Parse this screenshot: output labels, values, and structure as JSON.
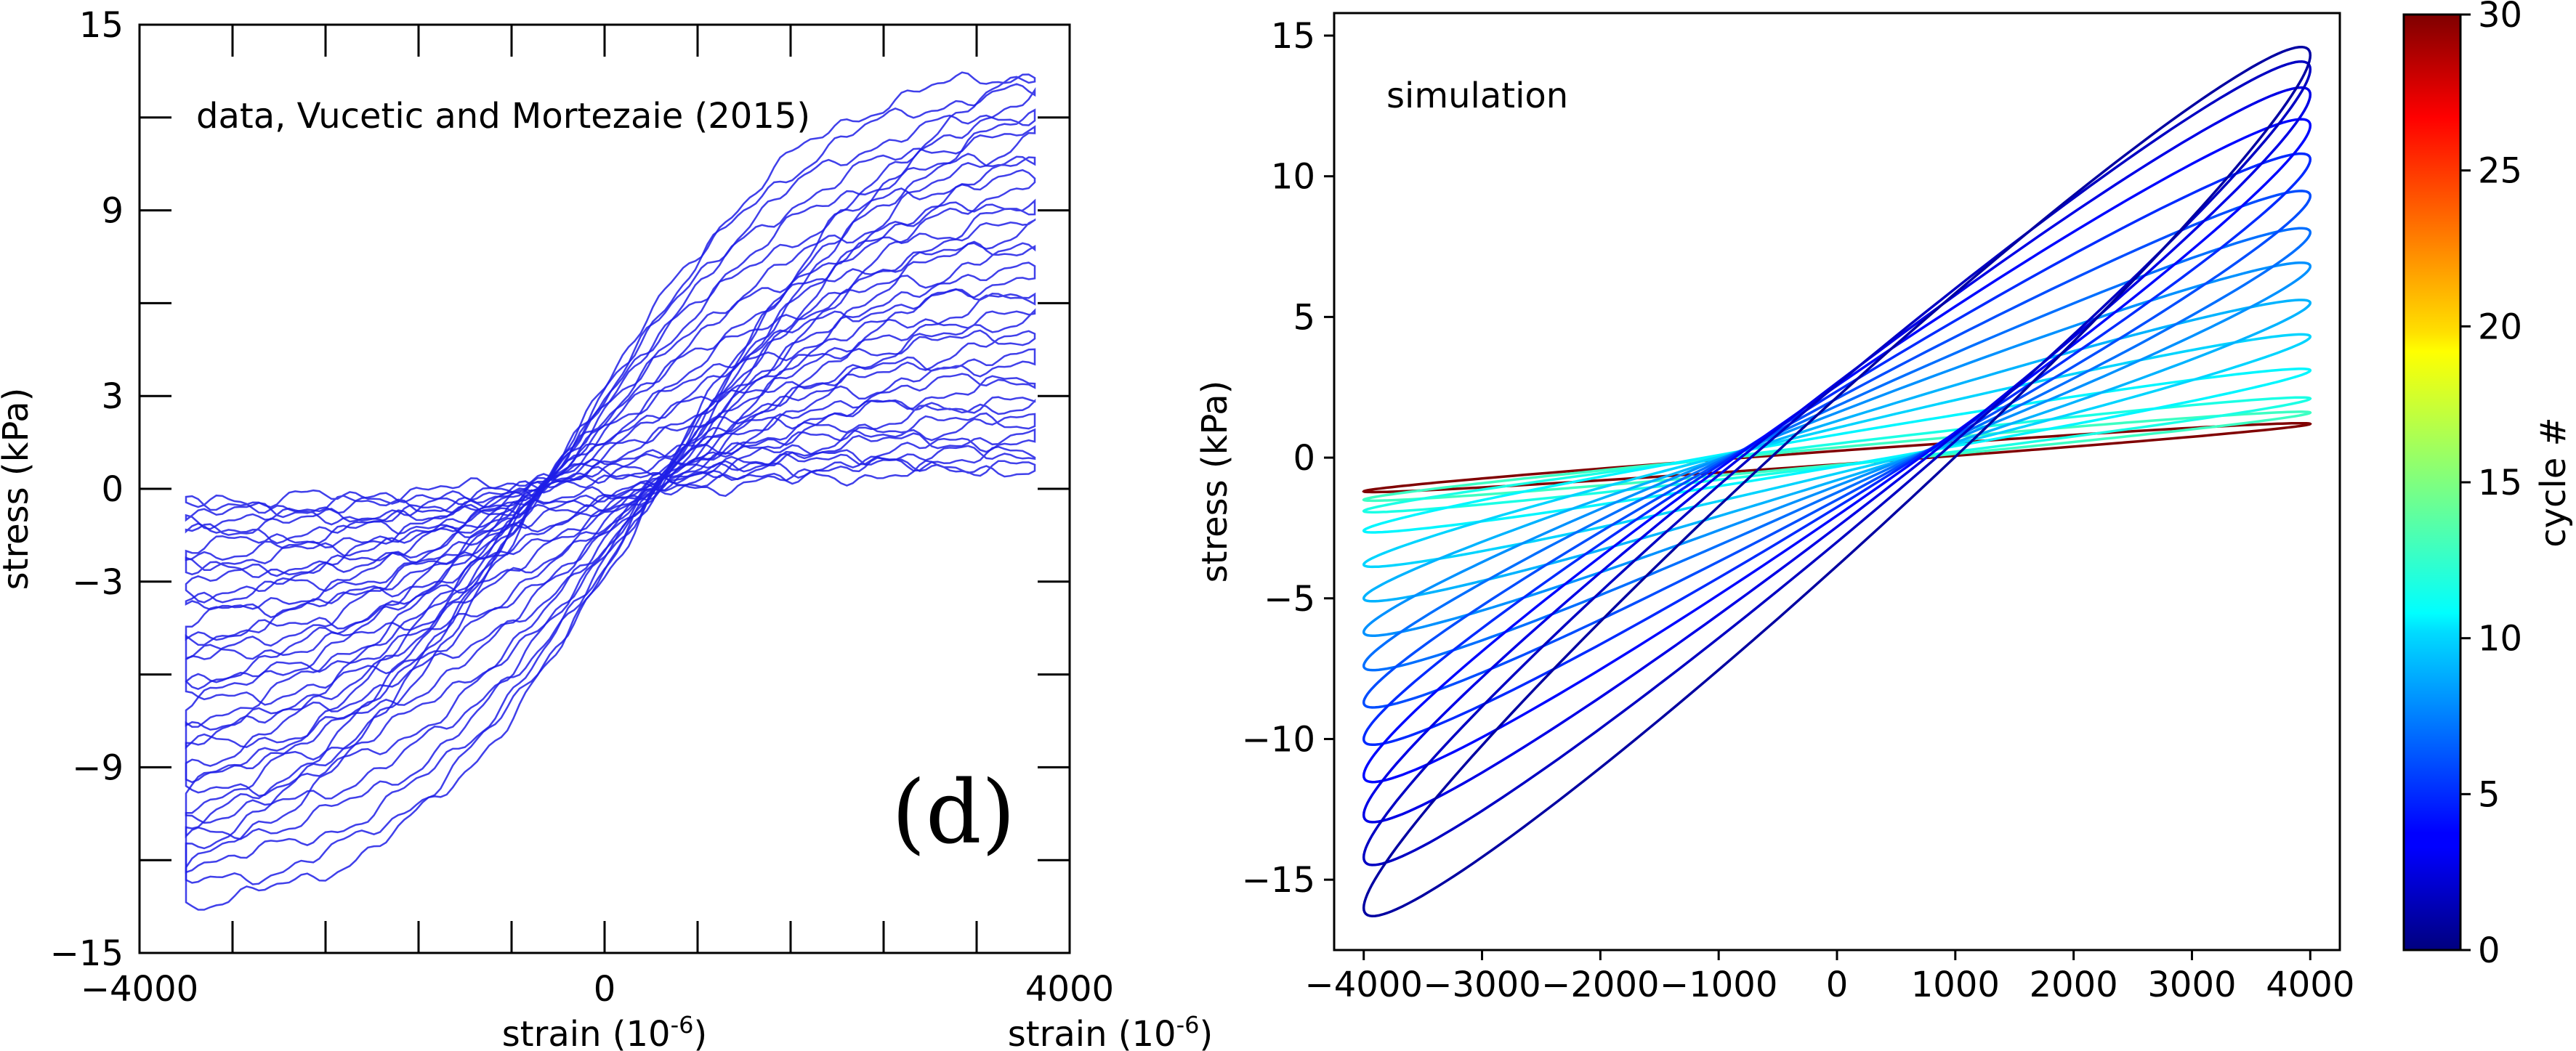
{
  "chart_data": [
    {
      "type": "line",
      "panel": "left",
      "annotation": "data, Vucetic and Mortezaie (2015)",
      "panel_label": "(d)",
      "xlabel": "strain (10",
      "xlabel_sup": "-6",
      "xlabel_close": ")",
      "ylabel": "stress (kPa)",
      "xlim": [
        -4000,
        4000
      ],
      "ylim": [
        -15,
        15
      ],
      "x_ticks": [
        {
          "value": -4000,
          "label": "−4000"
        },
        {
          "value": 0,
          "label": "0"
        },
        {
          "value": 4000,
          "label": "4000"
        }
      ],
      "y_ticks": [
        {
          "value": 15,
          "label": "15"
        },
        {
          "value": 9,
          "label": "9"
        },
        {
          "value": 3,
          "label": "3"
        },
        {
          "value": 0,
          "label": "0"
        },
        {
          "value": -3,
          "label": "−3"
        },
        {
          "value": -9,
          "label": "−9"
        },
        {
          "value": -15,
          "label": "−15"
        }
      ],
      "x_minor_ticks": [
        -3200,
        -2400,
        -1600,
        -800,
        800,
        1600,
        2400,
        3200
      ],
      "y_minor_ticks": [
        12,
        6,
        -6,
        -12
      ],
      "line_color": "#1f1fe6",
      "series": [
        {
          "cycle": 1,
          "peak_pos": 13.4,
          "peak_neg": -12.9
        },
        {
          "cycle": 2,
          "peak_pos": 12.8,
          "peak_neg": -12.3
        },
        {
          "cycle": 3,
          "peak_pos": 12.1,
          "peak_neg": -11.6
        },
        {
          "cycle": 4,
          "peak_pos": 11.4,
          "peak_neg": -10.9
        },
        {
          "cycle": 5,
          "peak_pos": 10.7,
          "peak_neg": -10.2
        },
        {
          "cycle": 6,
          "peak_pos": 10.0,
          "peak_neg": -9.5
        },
        {
          "cycle": 7,
          "peak_pos": 9.2,
          "peak_neg": -8.8
        },
        {
          "cycle": 8,
          "peak_pos": 8.5,
          "peak_neg": -8.0
        },
        {
          "cycle": 9,
          "peak_pos": 7.8,
          "peak_neg": -7.3
        },
        {
          "cycle": 10,
          "peak_pos": 7.0,
          "peak_neg": -6.6
        },
        {
          "cycle": 11,
          "peak_pos": 6.3,
          "peak_neg": -5.9
        },
        {
          "cycle": 12,
          "peak_pos": 5.6,
          "peak_neg": -5.2
        },
        {
          "cycle": 13,
          "peak_pos": 4.9,
          "peak_neg": -4.5
        },
        {
          "cycle": 14,
          "peak_pos": 4.2,
          "peak_neg": -3.8
        },
        {
          "cycle": 15,
          "peak_pos": 3.5,
          "peak_neg": -3.2
        },
        {
          "cycle": 16,
          "peak_pos": 2.8,
          "peak_neg": -2.6
        },
        {
          "cycle": 17,
          "peak_pos": 2.2,
          "peak_neg": -2.0
        },
        {
          "cycle": 18,
          "peak_pos": 1.6,
          "peak_neg": -1.4
        },
        {
          "cycle": 19,
          "peak_pos": 1.1,
          "peak_neg": -0.9
        },
        {
          "cycle": 20,
          "peak_pos": 0.7,
          "peak_neg": -0.5
        }
      ]
    },
    {
      "type": "line",
      "panel": "right",
      "annotation": "simulation",
      "xlabel": "strain (10",
      "xlabel_sup": "-6",
      "xlabel_close": ")",
      "ylabel": "stress (kPa)",
      "xlim": [
        -4250,
        4250
      ],
      "ylim": [
        -17.5,
        15.8
      ],
      "x_ticks": [
        {
          "value": -4000,
          "label": "−4000"
        },
        {
          "value": -3000,
          "label": "−3000"
        },
        {
          "value": -2000,
          "label": "−2000"
        },
        {
          "value": -1000,
          "label": "−1000"
        },
        {
          "value": 0,
          "label": "0"
        },
        {
          "value": 1000,
          "label": "1000"
        },
        {
          "value": 2000,
          "label": "2000"
        },
        {
          "value": 3000,
          "label": "3000"
        },
        {
          "value": 4000,
          "label": "4000"
        }
      ],
      "y_ticks": [
        {
          "value": 15,
          "label": "15"
        },
        {
          "value": 10,
          "label": "10"
        },
        {
          "value": 5,
          "label": "5"
        },
        {
          "value": 0,
          "label": "0"
        },
        {
          "value": -5,
          "label": "−5"
        },
        {
          "value": -10,
          "label": "−10"
        },
        {
          "value": -15,
          "label": "−15"
        }
      ],
      "series": [
        {
          "cycle": 1,
          "peak_pos": 14.3,
          "peak_neg": -16.0
        },
        {
          "cycle": 2,
          "peak_pos": 13.8,
          "peak_neg": -14.2
        },
        {
          "cycle": 3,
          "peak_pos": 12.9,
          "peak_neg": -12.7
        },
        {
          "cycle": 4,
          "peak_pos": 11.8,
          "peak_neg": -11.3
        },
        {
          "cycle": 5,
          "peak_pos": 10.6,
          "peak_neg": -10.0
        },
        {
          "cycle": 6,
          "peak_pos": 9.3,
          "peak_neg": -8.7
        },
        {
          "cycle": 7,
          "peak_pos": 8.0,
          "peak_neg": -7.4
        },
        {
          "cycle": 8,
          "peak_pos": 6.8,
          "peak_neg": -6.2
        },
        {
          "cycle": 9,
          "peak_pos": 5.5,
          "peak_neg": -5.0
        },
        {
          "cycle": 10,
          "peak_pos": 4.3,
          "peak_neg": -3.8
        },
        {
          "cycle": 11,
          "peak_pos": 3.1,
          "peak_neg": -2.6
        },
        {
          "cycle": 12,
          "peak_pos": 2.1,
          "peak_neg": -1.9
        },
        {
          "cycle": 13,
          "peak_pos": 1.6,
          "peak_neg": -1.5
        },
        {
          "cycle": 30,
          "peak_pos": 1.2,
          "peak_neg": -1.2
        }
      ]
    },
    {
      "type": "colorbar",
      "label": "cycle #",
      "range": [
        0,
        30
      ],
      "colormap": "jet",
      "ticks": [
        {
          "value": 0,
          "label": "0"
        },
        {
          "value": 5,
          "label": "5"
        },
        {
          "value": 10,
          "label": "10"
        },
        {
          "value": 15,
          "label": "15"
        },
        {
          "value": 20,
          "label": "20"
        },
        {
          "value": 25,
          "label": "25"
        },
        {
          "value": 30,
          "label": "30"
        }
      ]
    }
  ]
}
